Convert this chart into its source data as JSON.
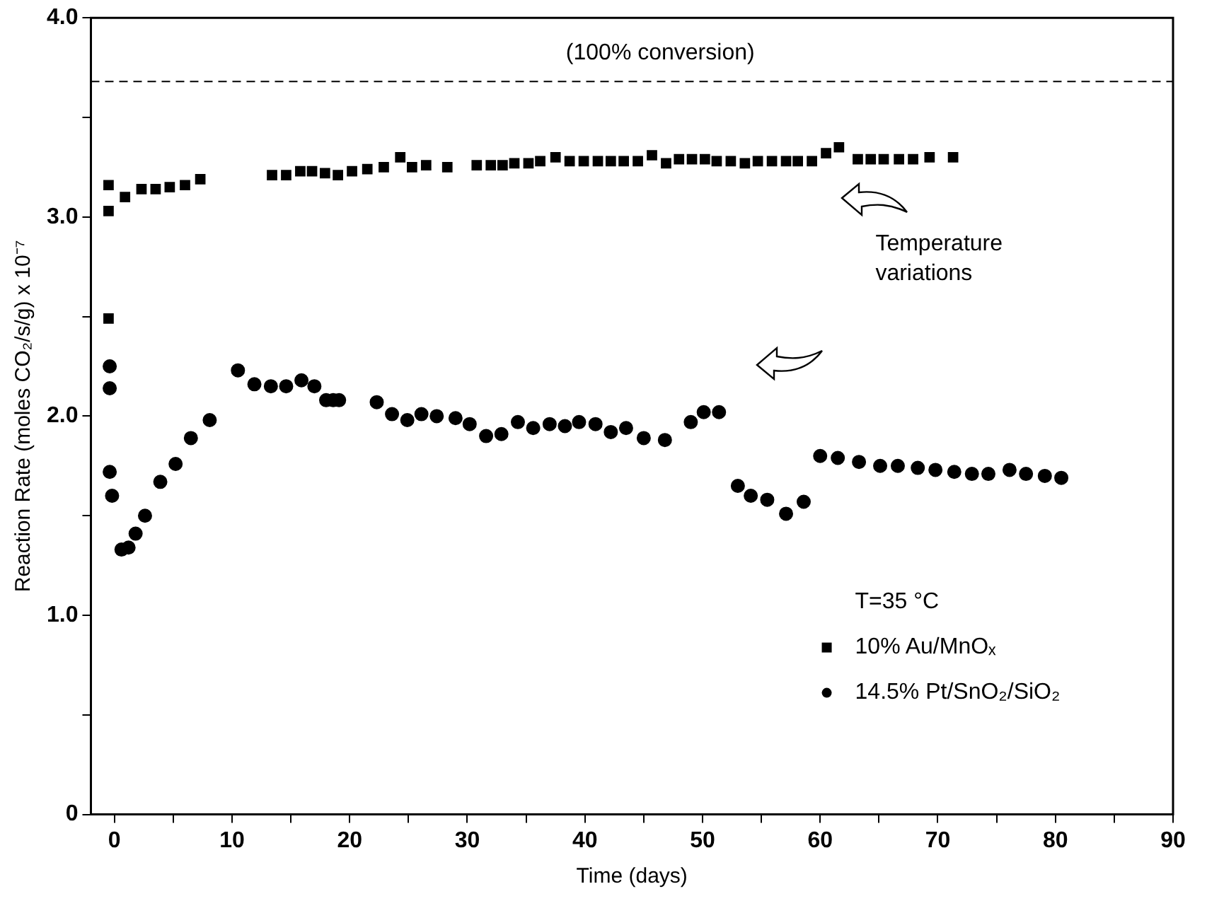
{
  "chart_data": {
    "type": "scatter",
    "xlabel": "Time (days)",
    "ylabel": "Reaction Rate (moles CO₂/s/g) x 10⁻⁷",
    "xlim": [
      -2,
      90
    ],
    "ylim": [
      0,
      4
    ],
    "xticks": [
      0,
      {
        "value": 5,
        "label": null
      },
      10,
      {
        "value": 15,
        "label": null
      },
      20,
      {
        "value": 25,
        "label": null
      },
      30,
      {
        "value": 35,
        "label": null
      },
      40,
      {
        "value": 45,
        "label": null
      },
      50,
      {
        "value": 55,
        "label": null
      },
      60,
      {
        "value": 65,
        "label": null
      },
      70,
      {
        "value": 75,
        "label": null
      },
      80,
      {
        "value": 85,
        "label": null
      },
      90
    ],
    "yticks": [
      {
        "value": 0,
        "label": "0"
      },
      {
        "value": 0.5,
        "label": null
      },
      {
        "value": 1,
        "label": "1.0"
      },
      {
        "value": 1.5,
        "label": null
      },
      {
        "value": 2,
        "label": "2.0"
      },
      {
        "value": 2.5,
        "label": null
      },
      {
        "value": 3,
        "label": "3.0"
      },
      {
        "value": 3.5,
        "label": null
      },
      {
        "value": 4,
        "label": "4.0"
      }
    ],
    "legend": "bottom right",
    "legend_title": "T=35 °C",
    "ref_lines": [
      {
        "axis": "y",
        "value": 3.68,
        "label": "(100% conversion)",
        "line_style": "dashed",
        "color": "#000000"
      }
    ],
    "annotations": [
      "Temperature variations"
    ],
    "series": [
      {
        "name": "10% Au/MnOₓ",
        "color": "#000000",
        "marker": "square",
        "x": [
          -0.5,
          -0.5,
          -0.5,
          0.9,
          2.3,
          3.5,
          4.7,
          6.0,
          7.3,
          13.4,
          14.6,
          15.8,
          16.8,
          17.9,
          19.0,
          20.2,
          21.5,
          22.9,
          24.3,
          25.3,
          26.5,
          28.3,
          30.8,
          32.0,
          33.0,
          34.0,
          35.2,
          36.2,
          37.5,
          38.7,
          39.9,
          41.1,
          42.2,
          43.3,
          44.5,
          45.7,
          46.9,
          48.0,
          49.1,
          50.2,
          51.2,
          52.4,
          53.6,
          54.7,
          55.9,
          57.1,
          58.1,
          59.3,
          60.5,
          61.6,
          63.2,
          64.3,
          65.4,
          66.7,
          67.9,
          69.3,
          71.3
        ],
        "values": [
          3.16,
          3.03,
          2.49,
          3.1,
          3.14,
          3.14,
          3.15,
          3.16,
          3.19,
          3.21,
          3.21,
          3.23,
          3.23,
          3.22,
          3.21,
          3.23,
          3.24,
          3.25,
          3.3,
          3.25,
          3.26,
          3.25,
          3.26,
          3.26,
          3.26,
          3.27,
          3.27,
          3.28,
          3.3,
          3.28,
          3.28,
          3.28,
          3.28,
          3.28,
          3.28,
          3.31,
          3.27,
          3.29,
          3.29,
          3.29,
          3.28,
          3.28,
          3.27,
          3.28,
          3.28,
          3.28,
          3.28,
          3.28,
          3.32,
          3.35,
          3.29,
          3.29,
          3.29,
          3.29,
          3.29,
          3.3,
          3.3
        ]
      },
      {
        "name": "14.5% Pt/SnO₂/SiO₂",
        "color": "#000000",
        "marker": "circle",
        "x": [
          -0.4,
          -0.4,
          -0.4,
          -0.2,
          0.6,
          1.2,
          1.8,
          2.6,
          3.9,
          5.2,
          6.5,
          8.1,
          10.5,
          11.9,
          13.3,
          14.6,
          15.9,
          17.0,
          18.0,
          18.6,
          19.1,
          22.3,
          23.6,
          24.9,
          26.1,
          27.4,
          29.0,
          30.2,
          31.6,
          32.9,
          34.3,
          35.6,
          37.0,
          38.3,
          39.5,
          40.9,
          42.2,
          43.5,
          45.0,
          46.8,
          49.0,
          50.1,
          51.4,
          53.0,
          54.1,
          55.5,
          57.1,
          58.6,
          60.0,
          61.5,
          63.3,
          65.1,
          66.6,
          68.3,
          69.8,
          71.4,
          72.9,
          74.3,
          76.1,
          77.5,
          79.1,
          80.5
        ],
        "values": [
          2.25,
          2.14,
          1.72,
          1.6,
          1.33,
          1.34,
          1.41,
          1.5,
          1.67,
          1.76,
          1.89,
          1.98,
          2.23,
          2.16,
          2.15,
          2.15,
          2.18,
          2.15,
          2.08,
          2.08,
          2.08,
          2.07,
          2.01,
          1.98,
          2.01,
          2.0,
          1.99,
          1.96,
          1.9,
          1.91,
          1.97,
          1.94,
          1.96,
          1.95,
          1.97,
          1.96,
          1.92,
          1.94,
          1.89,
          1.88,
          1.97,
          2.02,
          2.02,
          1.65,
          1.6,
          1.58,
          1.51,
          1.57,
          1.8,
          1.79,
          1.77,
          1.75,
          1.75,
          1.74,
          1.73,
          1.72,
          1.71,
          1.71,
          1.73,
          1.71,
          1.7,
          1.69
        ]
      }
    ]
  }
}
